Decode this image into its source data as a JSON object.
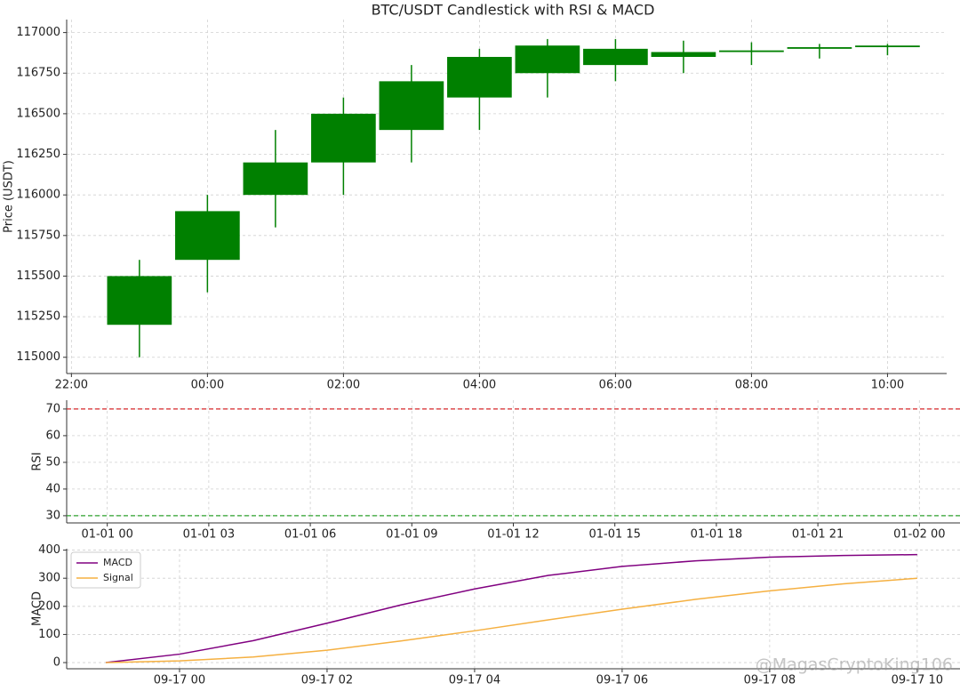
{
  "chart_data": [
    {
      "type": "candlestick",
      "title": "BTC/USDT Candlestick with RSI & MACD",
      "y_label": "Price (USDT)",
      "x": [
        -1,
        0,
        1,
        2,
        3,
        4,
        5,
        6,
        7,
        8,
        9,
        10
      ],
      "open": [
        115200,
        115600,
        116000,
        116200,
        116400,
        116600,
        116750,
        116800,
        116850,
        116880,
        116900,
        116910
      ],
      "high": [
        115600,
        116000,
        116400,
        116600,
        116800,
        116900,
        116960,
        116960,
        116950,
        116940,
        116930,
        116930
      ],
      "low": [
        115000,
        115400,
        115800,
        116000,
        116200,
        116400,
        116600,
        116700,
        116750,
        116800,
        116840,
        116860
      ],
      "close": [
        115500,
        115900,
        116200,
        116500,
        116700,
        116850,
        116920,
        116900,
        116880,
        116890,
        116910,
        116920
      ],
      "color": "#008000",
      "xlim": [
        -2.07,
        10.87
      ],
      "xticks": [
        {
          "value": -2,
          "label": "22:00"
        },
        {
          "value": 0,
          "label": "00:00"
        },
        {
          "value": 2,
          "label": "02:00"
        },
        {
          "value": 4,
          "label": "04:00"
        },
        {
          "value": 6,
          "label": "06:00"
        },
        {
          "value": 8,
          "label": "08:00"
        },
        {
          "value": 10,
          "label": "10:00"
        }
      ],
      "ylim": [
        114900,
        117080
      ],
      "yticks": [
        115000,
        115250,
        115500,
        115750,
        116000,
        116250,
        116500,
        116750,
        117000
      ],
      "grid": true
    },
    {
      "type": "line",
      "y_label": "RSI",
      "series": [],
      "hlines": [
        {
          "value": 70,
          "color": "#d62728"
        },
        {
          "value": 30,
          "color": "#2ca02c"
        }
      ],
      "xlim": [
        -1.2,
        25.2
      ],
      "xticks": [
        {
          "value": 0,
          "label": "01-01 00"
        },
        {
          "value": 3,
          "label": "01-01 03"
        },
        {
          "value": 6,
          "label": "01-01 06"
        },
        {
          "value": 9,
          "label": "01-01 09"
        },
        {
          "value": 12,
          "label": "01-01 12"
        },
        {
          "value": 15,
          "label": "01-01 15"
        },
        {
          "value": 18,
          "label": "01-01 18"
        },
        {
          "value": 21,
          "label": "01-01 21"
        },
        {
          "value": 24,
          "label": "01-02 00"
        }
      ],
      "ylim": [
        27.3,
        73.3
      ],
      "yticks": [
        30,
        40,
        50,
        60,
        70
      ],
      "grid": true
    },
    {
      "type": "line",
      "y_label": "MACD",
      "x": [
        -1,
        0,
        1,
        2,
        3,
        4,
        5,
        6,
        7,
        8,
        9,
        10
      ],
      "series": [
        {
          "name": "MACD",
          "color": "#800080",
          "values": [
            0,
            30,
            78,
            140,
            205,
            262,
            310,
            342,
            362,
            375,
            381,
            384
          ]
        },
        {
          "name": "Signal",
          "color": "#f5b041",
          "values": [
            0,
            6,
            20,
            44,
            77,
            113,
            152,
            190,
            225,
            255,
            280,
            300
          ]
        }
      ],
      "legend": "upper left",
      "xlim": [
        -1.53,
        10.58
      ],
      "xticks": [
        {
          "value": 0,
          "label": "09-17 00"
        },
        {
          "value": 2,
          "label": "09-17 02"
        },
        {
          "value": 4,
          "label": "09-17 04"
        },
        {
          "value": 6,
          "label": "09-17 06"
        },
        {
          "value": 8,
          "label": "09-17 08"
        },
        {
          "value": 10,
          "label": "09-17 10"
        }
      ],
      "ylim": [
        -22,
        405
      ],
      "yticks": [
        0,
        100,
        200,
        300,
        400
      ],
      "grid": true,
      "watermark": "@MagasCryptoKing106"
    }
  ]
}
